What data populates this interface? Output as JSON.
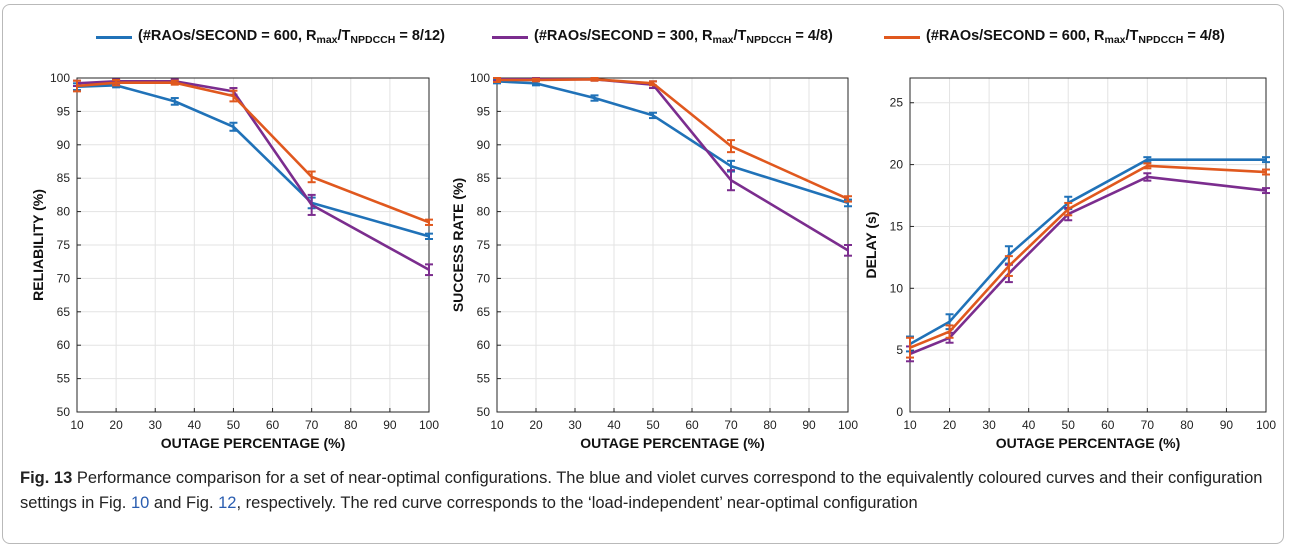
{
  "legend": {
    "items": [
      {
        "pre": "(#RAOs/SECOND = 600, R",
        "s1": "max",
        "mid": "/T",
        "s2": "NPDCCH",
        "post": " = 8/12)",
        "color": "#2072b8"
      },
      {
        "pre": "(#RAOs/SECOND = 300, R",
        "s1": "max",
        "mid": "/T",
        "s2": "NPDCCH",
        "post": " = 4/8)",
        "color": "#7b2d8e"
      },
      {
        "pre": "(#RAOs/SECOND = 600, R",
        "s1": "max",
        "mid": "/T",
        "s2": "NPDCCH",
        "post": " = 4/8)",
        "color": "#e0581e"
      }
    ]
  },
  "caption": {
    "label": "Fig. 13",
    "t1": " Performance comparison for a set of near-optimal configurations. The blue and violet curves correspond to the equivalently coloured curves and their configuration settings in Fig. ",
    "ref1": "10",
    "t2": " and Fig. ",
    "ref2": "12",
    "t3": ", respectively. The red curve corresponds to the ‘load-independent’ near-optimal configuration"
  },
  "chart_data": [
    {
      "type": "line",
      "xlabel": "OUTAGE PERCENTAGE (%)",
      "ylabel": "RELIABILITY (%)",
      "xlim": [
        10,
        100
      ],
      "ylim": [
        50,
        100
      ],
      "xticks": [
        10,
        20,
        30,
        40,
        50,
        60,
        70,
        80,
        90,
        100
      ],
      "yticks": [
        50,
        55,
        60,
        65,
        70,
        75,
        80,
        85,
        90,
        95,
        100
      ],
      "grid": true,
      "x": [
        10,
        20,
        35,
        50,
        70,
        100
      ],
      "series": [
        {
          "color": "#2072b8",
          "values": [
            98.7,
            98.9,
            96.5,
            92.7,
            81.3,
            76.3
          ],
          "errors": [
            0.5,
            0.3,
            0.5,
            0.6,
            0.8,
            0.4
          ]
        },
        {
          "color": "#7b2d8e",
          "values": [
            99.2,
            99.5,
            99.5,
            98.0,
            81.0,
            71.3
          ],
          "errors": [
            0.4,
            0.3,
            0.3,
            0.5,
            1.5,
            0.8
          ]
        },
        {
          "color": "#e0581e",
          "values": [
            98.8,
            99.3,
            99.3,
            97.3,
            85.2,
            78.4
          ],
          "errors": [
            0.8,
            0.4,
            0.3,
            0.8,
            0.8,
            0.4
          ]
        }
      ]
    },
    {
      "type": "line",
      "xlabel": "OUTAGE PERCENTAGE (%)",
      "ylabel": "SUCCESS RATE (%)",
      "xlim": [
        10,
        100
      ],
      "ylim": [
        50,
        100
      ],
      "xticks": [
        10,
        20,
        30,
        40,
        50,
        60,
        70,
        80,
        90,
        100
      ],
      "yticks": [
        50,
        55,
        60,
        65,
        70,
        75,
        80,
        85,
        90,
        95,
        100
      ],
      "grid": true,
      "x": [
        10,
        20,
        35,
        50,
        70,
        100
      ],
      "series": [
        {
          "color": "#2072b8",
          "values": [
            99.5,
            99.2,
            97.0,
            94.4,
            86.8,
            81.3
          ],
          "errors": [
            0.3,
            0.3,
            0.4,
            0.4,
            0.8,
            0.5
          ]
        },
        {
          "color": "#7b2d8e",
          "values": [
            99.8,
            99.8,
            99.8,
            99.0,
            84.7,
            74.2
          ],
          "errors": [
            0.2,
            0.2,
            0.2,
            0.5,
            1.5,
            0.8
          ]
        },
        {
          "color": "#e0581e",
          "values": [
            99.7,
            99.7,
            99.8,
            99.2,
            89.8,
            81.9
          ],
          "errors": [
            0.3,
            0.2,
            0.2,
            0.3,
            0.9,
            0.4
          ]
        }
      ]
    },
    {
      "type": "line",
      "xlabel": "OUTAGE PERCENTAGE (%)",
      "ylabel": "DELAY (s)",
      "xlim": [
        10,
        100
      ],
      "ylim": [
        0,
        27
      ],
      "xticks": [
        10,
        20,
        30,
        40,
        50,
        60,
        70,
        80,
        90,
        100
      ],
      "yticks": [
        0,
        5,
        10,
        15,
        20,
        25
      ],
      "grid": true,
      "x": [
        10,
        20,
        35,
        50,
        70,
        100
      ],
      "series": [
        {
          "color": "#2072b8",
          "values": [
            5.5,
            7.3,
            12.7,
            16.9,
            20.4,
            20.4
          ],
          "errors": [
            0.6,
            0.6,
            0.7,
            0.5,
            0.2,
            0.2
          ]
        },
        {
          "color": "#7b2d8e",
          "values": [
            4.7,
            6.0,
            11.2,
            16.0,
            19.0,
            17.9
          ],
          "errors": [
            0.6,
            0.4,
            0.7,
            0.5,
            0.3,
            0.2
          ]
        },
        {
          "color": "#e0581e",
          "values": [
            5.2,
            6.5,
            11.8,
            16.4,
            19.9,
            19.4
          ],
          "errors": [
            0.8,
            0.5,
            0.8,
            0.5,
            0.2,
            0.2
          ]
        }
      ]
    }
  ]
}
